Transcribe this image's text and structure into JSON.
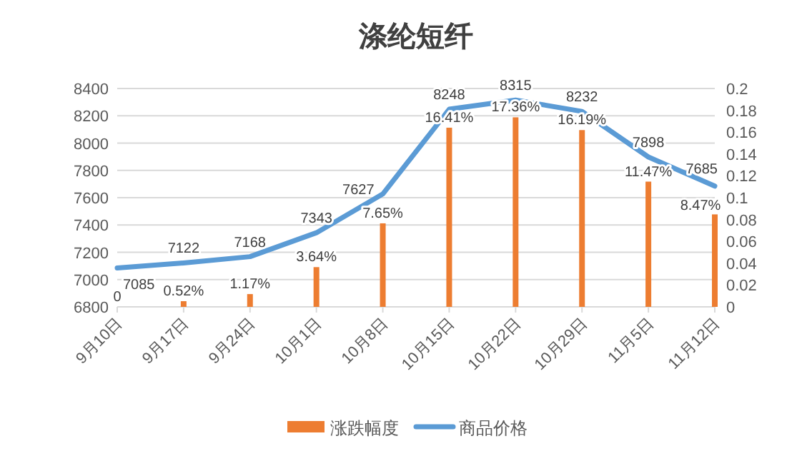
{
  "chart_data": {
    "type": "bar",
    "title": "涤纶短纤",
    "categories": [
      "9月10日",
      "9月17日",
      "9月24日",
      "10月1日",
      "10月8日",
      "10月15日",
      "10月22日",
      "10月29日",
      "11月5日",
      "11月12日"
    ],
    "series": [
      {
        "name": "涨跌幅度",
        "axis": "y2",
        "color": "#ed7d31",
        "values": [
          0,
          0.0052,
          0.0117,
          0.0364,
          0.0765,
          0.1641,
          0.1736,
          0.1619,
          0.1147,
          0.0847
        ],
        "value_labels": [
          "0",
          "0.52%",
          "1.17%",
          "3.64%",
          "7.65%",
          "16.41%",
          "17.36%",
          "16.19%",
          "11.47%",
          "8.47%"
        ]
      },
      {
        "name": "商品价格",
        "type": "line",
        "color": "#5b9bd5",
        "values": [
          7085,
          7122,
          7168,
          7343,
          7627,
          8248,
          8315,
          8232,
          7898,
          7685
        ],
        "value_labels": [
          "7085",
          "7122",
          "7168",
          "7343",
          "7627",
          "8248",
          "8315",
          "8232",
          "7898",
          "7685"
        ]
      }
    ],
    "ylim": [
      6800,
      8400
    ],
    "yticks": [
      6800,
      7000,
      7200,
      7400,
      7600,
      7800,
      8000,
      8200,
      8400
    ],
    "y2lim": [
      0,
      0.2
    ],
    "y2ticks": [
      0,
      0.02,
      0.04,
      0.06,
      0.08,
      0.1,
      0.12,
      0.14,
      0.16,
      0.18,
      0.2
    ],
    "grid": "y",
    "legend": "bottom"
  }
}
